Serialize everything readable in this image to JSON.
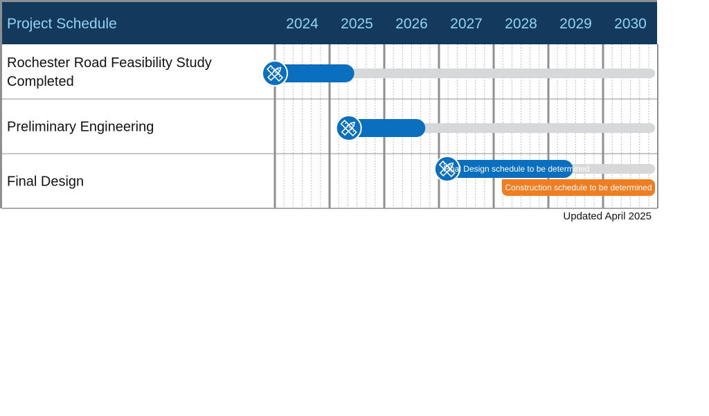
{
  "chart_data": {
    "type": "gantt",
    "title": "Project Schedule",
    "years": [
      "2024",
      "2025",
      "2026",
      "2027",
      "2028",
      "2029",
      "2030"
    ],
    "rows": [
      {
        "label_lines": [
          "Rochester Road Feasibility Study",
          "Completed"
        ],
        "bars": [
          {
            "kind": "progress",
            "start": 2024.0,
            "end": 2025.45,
            "color": "#0a6fbf",
            "text": ""
          }
        ]
      },
      {
        "label_lines": [
          "Preliminary Engineering"
        ],
        "bars": [
          {
            "kind": "progress",
            "start": 2025.35,
            "end": 2026.75,
            "color": "#0a6fbf",
            "text": ""
          }
        ]
      },
      {
        "label_lines": [
          "Final Design"
        ],
        "bars": [
          {
            "kind": "progress",
            "start": 2027.15,
            "end": 2029.45,
            "color": "#0a6fbf",
            "text": "Final Design schedule to be determined"
          },
          {
            "kind": "tbd",
            "start": 2028.15,
            "end": 2030.95,
            "color": "#ef7d22",
            "text": "Construction schedule to be determined"
          }
        ]
      }
    ],
    "footnote": "Updated April 2025"
  },
  "colors": {
    "header_bg": "#133a5c",
    "header_text": "#8fd3f5",
    "primary_bar": "#0a6fbf",
    "secondary_bar": "#ef7d22",
    "track": "#d7d8da",
    "grid_major": "#8f8f93",
    "grid_minor": "#a9a9ad"
  },
  "icons": {
    "milestone": "pencil-ruler-icon"
  }
}
